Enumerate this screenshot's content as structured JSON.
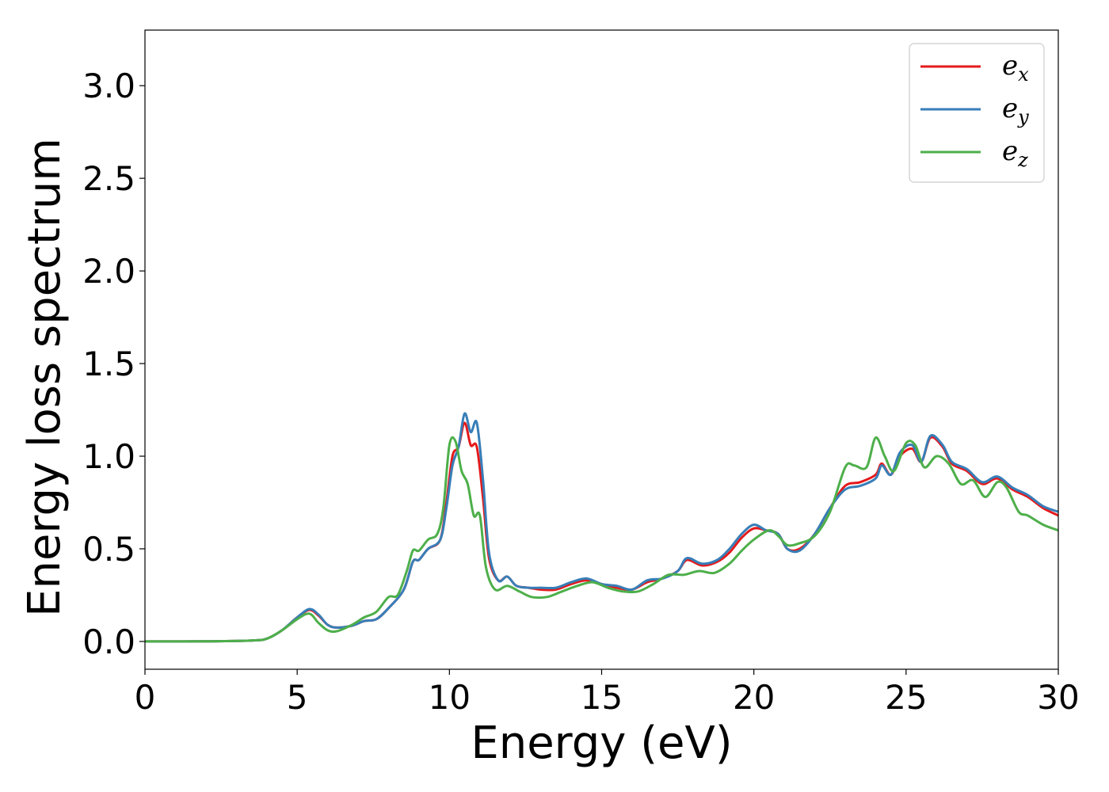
{
  "chart_data": {
    "type": "line",
    "title": "",
    "xlabel": "Energy (eV)",
    "ylabel": "Energy loss spectrum",
    "xlim": [
      0,
      30
    ],
    "ylim": [
      -0.15,
      3.3
    ],
    "xticks": [
      0,
      5,
      10,
      15,
      20,
      25,
      30
    ],
    "yticks": [
      0.0,
      0.5,
      1.0,
      1.5,
      2.0,
      2.5,
      3.0
    ],
    "xtick_labels": [
      "0",
      "5",
      "10",
      "15",
      "20",
      "25",
      "30"
    ],
    "ytick_labels": [
      "0.0",
      "0.5",
      "1.0",
      "1.5",
      "2.0",
      "2.5",
      "3.0"
    ],
    "grid": false,
    "legend_position": "top-right",
    "series": [
      {
        "name": "e_x",
        "legend_base": "e",
        "legend_sub": "x",
        "color": "#e41a1c",
        "points": [
          [
            0,
            0
          ],
          [
            2,
            0.001
          ],
          [
            3.5,
            0.005
          ],
          [
            4,
            0.015
          ],
          [
            4.5,
            0.06
          ],
          [
            5,
            0.13
          ],
          [
            5.4,
            0.17
          ],
          [
            5.7,
            0.14
          ],
          [
            6,
            0.09
          ],
          [
            6.3,
            0.075
          ],
          [
            6.8,
            0.085
          ],
          [
            7.2,
            0.11
          ],
          [
            7.6,
            0.12
          ],
          [
            8,
            0.18
          ],
          [
            8.5,
            0.28
          ],
          [
            8.8,
            0.43
          ],
          [
            9,
            0.44
          ],
          [
            9.3,
            0.5
          ],
          [
            9.7,
            0.55
          ],
          [
            9.9,
            0.75
          ],
          [
            10.1,
            1.0
          ],
          [
            10.3,
            1.05
          ],
          [
            10.5,
            1.18
          ],
          [
            10.7,
            1.06
          ],
          [
            10.9,
            1.05
          ],
          [
            11.1,
            0.78
          ],
          [
            11.3,
            0.45
          ],
          [
            11.6,
            0.33
          ],
          [
            11.9,
            0.35
          ],
          [
            12.2,
            0.3
          ],
          [
            12.6,
            0.29
          ],
          [
            13,
            0.28
          ],
          [
            13.5,
            0.28
          ],
          [
            14,
            0.31
          ],
          [
            14.5,
            0.33
          ],
          [
            15,
            0.31
          ],
          [
            15.5,
            0.29
          ],
          [
            16,
            0.28
          ],
          [
            16.5,
            0.32
          ],
          [
            17,
            0.34
          ],
          [
            17.5,
            0.38
          ],
          [
            17.8,
            0.44
          ],
          [
            18.3,
            0.41
          ],
          [
            18.8,
            0.43
          ],
          [
            19.2,
            0.48
          ],
          [
            19.6,
            0.56
          ],
          [
            20,
            0.61
          ],
          [
            20.4,
            0.6
          ],
          [
            20.8,
            0.58
          ],
          [
            21.1,
            0.5
          ],
          [
            21.5,
            0.5
          ],
          [
            22,
            0.58
          ],
          [
            22.5,
            0.72
          ],
          [
            23,
            0.84
          ],
          [
            23.5,
            0.86
          ],
          [
            24,
            0.9
          ],
          [
            24.2,
            0.96
          ],
          [
            24.5,
            0.9
          ],
          [
            24.8,
            1.0
          ],
          [
            25.2,
            1.04
          ],
          [
            25.5,
            0.97
          ],
          [
            25.8,
            1.1
          ],
          [
            26.2,
            1.05
          ],
          [
            26.5,
            0.96
          ],
          [
            27,
            0.92
          ],
          [
            27.5,
            0.85
          ],
          [
            28,
            0.88
          ],
          [
            28.5,
            0.82
          ],
          [
            29,
            0.78
          ],
          [
            29.5,
            0.72
          ],
          [
            30,
            0.68
          ]
        ]
      },
      {
        "name": "e_y",
        "legend_base": "e",
        "legend_sub": "y",
        "color": "#377eb8",
        "points": [
          [
            0,
            0
          ],
          [
            2,
            0.001
          ],
          [
            3.5,
            0.005
          ],
          [
            4,
            0.015
          ],
          [
            4.5,
            0.06
          ],
          [
            5,
            0.13
          ],
          [
            5.4,
            0.175
          ],
          [
            5.7,
            0.145
          ],
          [
            6,
            0.09
          ],
          [
            6.3,
            0.075
          ],
          [
            6.8,
            0.085
          ],
          [
            7.2,
            0.11
          ],
          [
            7.6,
            0.12
          ],
          [
            8,
            0.18
          ],
          [
            8.5,
            0.28
          ],
          [
            8.8,
            0.43
          ],
          [
            9,
            0.44
          ],
          [
            9.3,
            0.5
          ],
          [
            9.7,
            0.55
          ],
          [
            9.9,
            0.72
          ],
          [
            10.1,
            0.95
          ],
          [
            10.3,
            1.05
          ],
          [
            10.5,
            1.23
          ],
          [
            10.7,
            1.13
          ],
          [
            10.9,
            1.18
          ],
          [
            11.1,
            0.88
          ],
          [
            11.3,
            0.48
          ],
          [
            11.6,
            0.33
          ],
          [
            11.9,
            0.35
          ],
          [
            12.2,
            0.3
          ],
          [
            12.6,
            0.29
          ],
          [
            13,
            0.29
          ],
          [
            13.5,
            0.29
          ],
          [
            14,
            0.32
          ],
          [
            14.5,
            0.34
          ],
          [
            15,
            0.31
          ],
          [
            15.5,
            0.3
          ],
          [
            16,
            0.28
          ],
          [
            16.5,
            0.33
          ],
          [
            17,
            0.34
          ],
          [
            17.5,
            0.38
          ],
          [
            17.8,
            0.45
          ],
          [
            18.3,
            0.42
          ],
          [
            18.8,
            0.44
          ],
          [
            19.2,
            0.5
          ],
          [
            19.6,
            0.58
          ],
          [
            20,
            0.63
          ],
          [
            20.4,
            0.6
          ],
          [
            20.8,
            0.58
          ],
          [
            21.1,
            0.5
          ],
          [
            21.5,
            0.49
          ],
          [
            22,
            0.58
          ],
          [
            22.5,
            0.72
          ],
          [
            23,
            0.82
          ],
          [
            23.5,
            0.84
          ],
          [
            24,
            0.88
          ],
          [
            24.2,
            0.95
          ],
          [
            24.5,
            0.9
          ],
          [
            24.8,
            1.02
          ],
          [
            25.2,
            1.06
          ],
          [
            25.5,
            0.97
          ],
          [
            25.8,
            1.11
          ],
          [
            26.2,
            1.06
          ],
          [
            26.5,
            0.97
          ],
          [
            27,
            0.93
          ],
          [
            27.5,
            0.86
          ],
          [
            28,
            0.89
          ],
          [
            28.5,
            0.83
          ],
          [
            29,
            0.79
          ],
          [
            29.5,
            0.73
          ],
          [
            30,
            0.7
          ]
        ]
      },
      {
        "name": "e_z",
        "legend_base": "e",
        "legend_sub": "z",
        "color": "#4daf4a",
        "points": [
          [
            0,
            0
          ],
          [
            2,
            0.001
          ],
          [
            3.5,
            0.005
          ],
          [
            4,
            0.015
          ],
          [
            4.5,
            0.06
          ],
          [
            5,
            0.12
          ],
          [
            5.4,
            0.15
          ],
          [
            5.7,
            0.1
          ],
          [
            6,
            0.06
          ],
          [
            6.3,
            0.055
          ],
          [
            6.8,
            0.09
          ],
          [
            7.2,
            0.13
          ],
          [
            7.6,
            0.16
          ],
          [
            8,
            0.24
          ],
          [
            8.3,
            0.25
          ],
          [
            8.6,
            0.38
          ],
          [
            8.8,
            0.49
          ],
          [
            9,
            0.49
          ],
          [
            9.3,
            0.55
          ],
          [
            9.6,
            0.58
          ],
          [
            9.8,
            0.72
          ],
          [
            10,
            1.06
          ],
          [
            10.2,
            1.08
          ],
          [
            10.4,
            0.92
          ],
          [
            10.6,
            0.85
          ],
          [
            10.8,
            0.68
          ],
          [
            11,
            0.68
          ],
          [
            11.2,
            0.4
          ],
          [
            11.5,
            0.28
          ],
          [
            11.9,
            0.3
          ],
          [
            12.3,
            0.27
          ],
          [
            12.7,
            0.24
          ],
          [
            13.2,
            0.24
          ],
          [
            13.7,
            0.27
          ],
          [
            14.2,
            0.3
          ],
          [
            14.7,
            0.32
          ],
          [
            15.2,
            0.29
          ],
          [
            15.7,
            0.27
          ],
          [
            16.2,
            0.27
          ],
          [
            16.7,
            0.31
          ],
          [
            17.2,
            0.36
          ],
          [
            17.7,
            0.36
          ],
          [
            18.2,
            0.38
          ],
          [
            18.7,
            0.37
          ],
          [
            19.2,
            0.42
          ],
          [
            19.6,
            0.49
          ],
          [
            20,
            0.55
          ],
          [
            20.5,
            0.6
          ],
          [
            20.8,
            0.57
          ],
          [
            21.1,
            0.52
          ],
          [
            21.5,
            0.53
          ],
          [
            22,
            0.57
          ],
          [
            22.5,
            0.7
          ],
          [
            23,
            0.94
          ],
          [
            23.3,
            0.95
          ],
          [
            23.7,
            0.94
          ],
          [
            24,
            1.1
          ],
          [
            24.3,
            1.0
          ],
          [
            24.6,
            0.92
          ],
          [
            25,
            1.07
          ],
          [
            25.3,
            1.06
          ],
          [
            25.6,
            0.94
          ],
          [
            26,
            1.0
          ],
          [
            26.4,
            0.96
          ],
          [
            26.8,
            0.85
          ],
          [
            27.2,
            0.87
          ],
          [
            27.6,
            0.78
          ],
          [
            28,
            0.86
          ],
          [
            28.3,
            0.83
          ],
          [
            28.7,
            0.7
          ],
          [
            29,
            0.68
          ],
          [
            29.5,
            0.63
          ],
          [
            30,
            0.6
          ]
        ]
      }
    ]
  }
}
